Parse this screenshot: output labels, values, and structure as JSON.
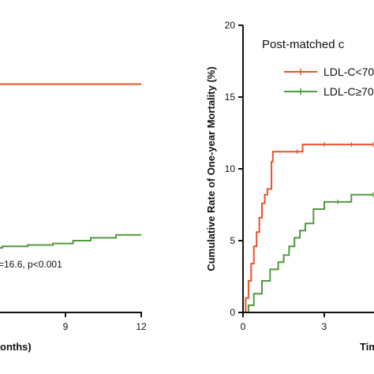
{
  "chart_data": [
    {
      "type": "line",
      "subtype": "step",
      "title": "",
      "xlabel": "onths)",
      "ylabel": "",
      "xlim": [
        0,
        12
      ],
      "x_ticks": [
        "9",
        "12"
      ],
      "annotation": "=16.6, p<0.001",
      "series": [
        {
          "color": "#e8532b",
          "x": [
            0,
            12
          ],
          "y": [
            15.9,
            15.9
          ]
        },
        {
          "color": "#4f9a3e",
          "x": [
            0,
            3,
            5,
            6.5,
            7.5,
            8.5,
            9.3,
            10,
            11,
            12
          ],
          "y": [
            4.3,
            4.4,
            4.5,
            4.6,
            4.7,
            4.8,
            5.0,
            5.2,
            5.4,
            5.4
          ]
        }
      ]
    },
    {
      "type": "line",
      "subtype": "step",
      "title": "Post-matched c",
      "xlabel": "Tim",
      "ylabel": "Cumulative Rate of One-year Mortality (%)",
      "xlim": [
        0,
        12
      ],
      "ylim": [
        0,
        20
      ],
      "x_ticks": [
        "0",
        "3"
      ],
      "y_ticks": [
        "0",
        "5",
        "10",
        "15",
        "20"
      ],
      "grid": false,
      "legend": "top-right",
      "series": [
        {
          "name": "LDL-C<70",
          "color": "#e8532b",
          "x": [
            0,
            0.1,
            0.2,
            0.3,
            0.4,
            0.5,
            0.6,
            0.7,
            0.8,
            0.9,
            1.0,
            1.05,
            1.1,
            2.0,
            2.2,
            3.0,
            4.0,
            4.8
          ],
          "y": [
            0,
            1.0,
            2.2,
            3.4,
            4.6,
            5.6,
            6.6,
            7.6,
            8.2,
            8.6,
            8.6,
            10.5,
            11.2,
            11.2,
            11.7,
            11.7,
            11.7,
            11.7
          ]
        },
        {
          "name": "LDL-C≥70",
          "color": "#4f9a3e",
          "x": [
            0,
            0.2,
            0.4,
            0.7,
            1.0,
            1.3,
            1.5,
            1.7,
            1.9,
            2.1,
            2.3,
            2.6,
            3.0,
            3.5,
            4.0,
            4.8
          ],
          "y": [
            0,
            0.5,
            1.3,
            2.2,
            3.0,
            3.5,
            4.0,
            4.6,
            5.2,
            5.7,
            6.2,
            7.2,
            7.7,
            7.7,
            8.2,
            8.2
          ]
        }
      ]
    }
  ]
}
